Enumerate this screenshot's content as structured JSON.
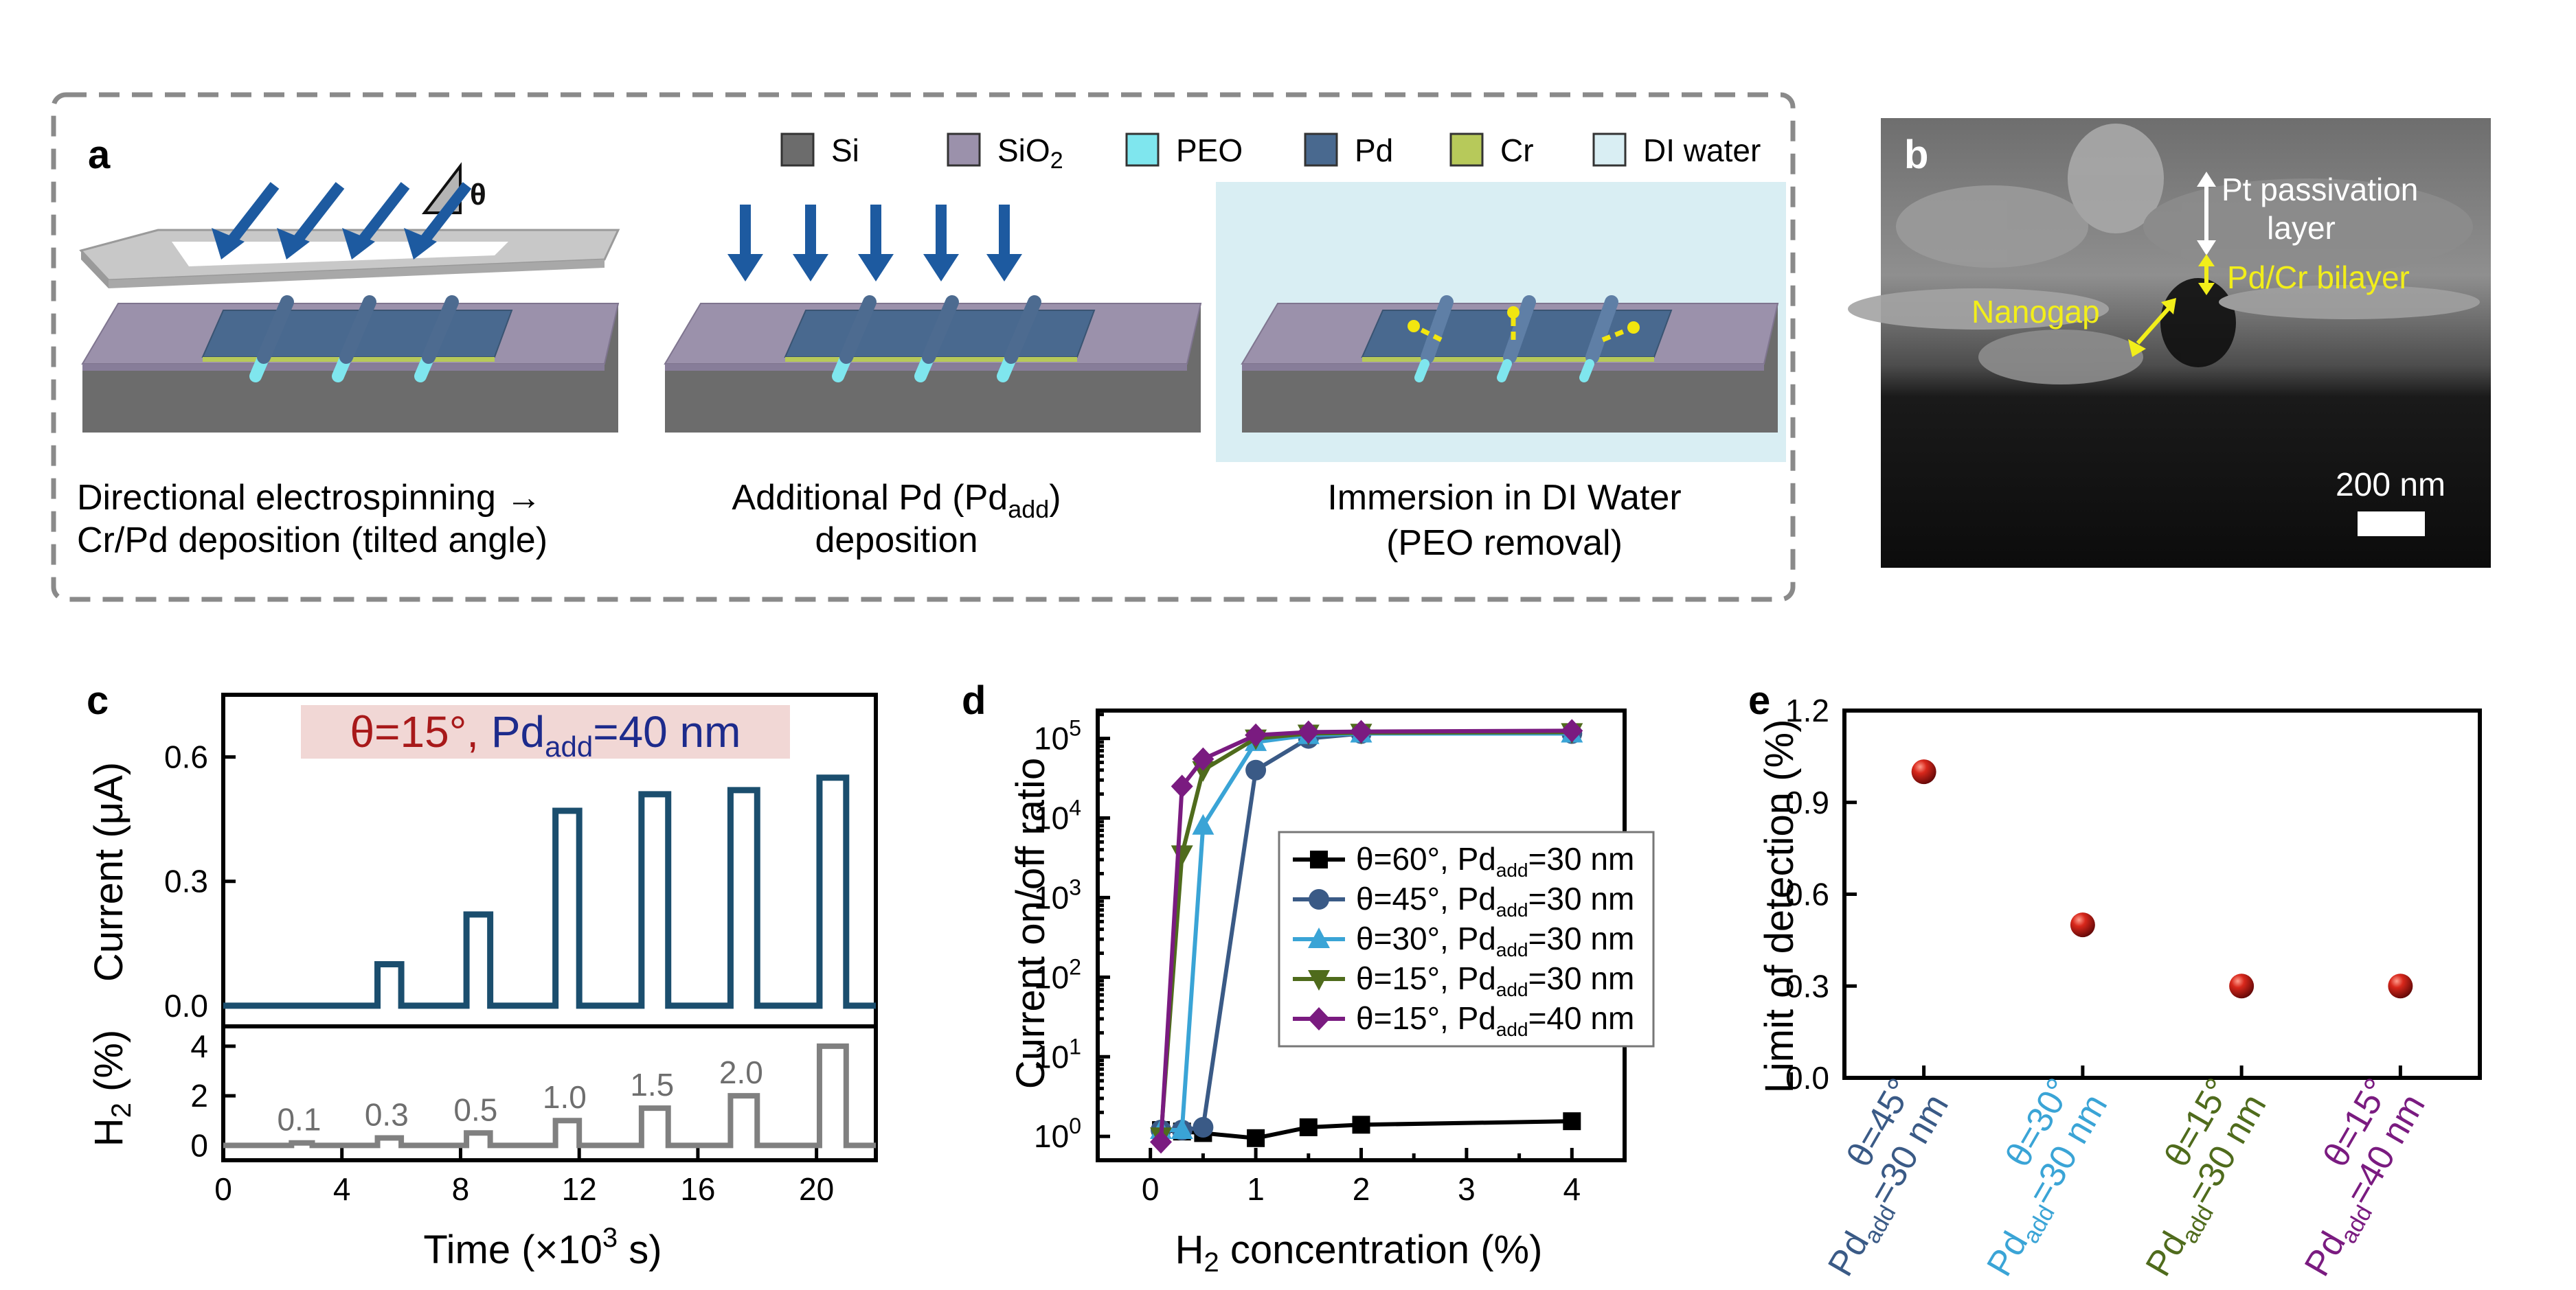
{
  "panel_a": {
    "label": "a",
    "legend": [
      {
        "name": "Si",
        "color": "#6c6c6c"
      },
      {
        "name": "SiO",
        "sub": "2",
        "color": "#9b91ab"
      },
      {
        "name": "PEO",
        "color": "#7fe6ee"
      },
      {
        "name": "Pd",
        "color": "#49698f"
      },
      {
        "name": "Cr",
        "color": "#b7c95a"
      },
      {
        "name": "DI water",
        "color": "#d9eef3"
      }
    ],
    "theta": "θ",
    "step1": {
      "line1": "Directional electrospinning →",
      "line2": "Cr/Pd deposition (tilted angle)"
    },
    "step2": {
      "line1_pre": "Additional Pd (Pd",
      "line1_sub": "add",
      "line1_post": ")",
      "line2": "deposition"
    },
    "step3": {
      "line1": "Immersion in DI Water",
      "line2": "(PEO removal)"
    }
  },
  "panel_b": {
    "label": "b",
    "annot_pt_1": "Pt passivation",
    "annot_pt_2": "layer",
    "annot_pdcr": "Pd/Cr bilayer",
    "annot_gap": "Nanogap",
    "scalebar": "200 nm"
  },
  "panel_c_title": {
    "pre": "θ=15°, ",
    "pd": "Pd",
    "sub": "add",
    "post": "=40 nm"
  },
  "chart_data": [
    {
      "id": "c_top",
      "type": "line",
      "panel": "c",
      "ylabel": "Current (μA)",
      "yticks": [
        "0.0",
        "0.3",
        "0.6"
      ],
      "ylim": [
        -0.05,
        0.75
      ],
      "xlim": [
        0,
        22
      ],
      "pulses": [
        {
          "start": 5.2,
          "end": 6.0,
          "value": 0.1
        },
        {
          "start": 8.2,
          "end": 9.0,
          "value": 0.22
        },
        {
          "start": 11.2,
          "end": 12.0,
          "value": 0.47
        },
        {
          "start": 14.1,
          "end": 15.0,
          "value": 0.51
        },
        {
          "start": 17.1,
          "end": 18.0,
          "value": 0.52
        },
        {
          "start": 20.1,
          "end": 21.0,
          "value": 0.55
        }
      ],
      "color": "#1b4e6e"
    },
    {
      "id": "c_bottom",
      "type": "line",
      "panel": "c",
      "ylabel_pre": "H",
      "ylabel_sub": "2",
      "ylabel_post": " (%)",
      "xlabel_pre": "Time (×10",
      "xlabel_sup": "3",
      "xlabel_post": " s)",
      "xticks": [
        "0",
        "4",
        "8",
        "12",
        "16",
        "20"
      ],
      "yticks": [
        "0",
        "2",
        "4"
      ],
      "ylim": [
        -0.6,
        4.8
      ],
      "xlim": [
        0,
        22
      ],
      "pulses": [
        {
          "start": 2.3,
          "end": 3.0,
          "value": 0.1,
          "label": "0.1"
        },
        {
          "start": 5.2,
          "end": 6.0,
          "value": 0.3,
          "label": "0.3"
        },
        {
          "start": 8.2,
          "end": 9.0,
          "value": 0.5,
          "label": "0.5"
        },
        {
          "start": 11.2,
          "end": 12.0,
          "value": 1.0,
          "label": "1.0"
        },
        {
          "start": 14.1,
          "end": 15.0,
          "value": 1.5,
          "label": "1.5"
        },
        {
          "start": 17.1,
          "end": 18.0,
          "value": 2.0,
          "label": "2.0"
        },
        {
          "start": 20.1,
          "end": 21.0,
          "value": 4.0,
          "label": ""
        }
      ],
      "color": "#808080"
    },
    {
      "id": "d",
      "type": "line",
      "panel": "d",
      "label": "d",
      "xlabel_pre": "H",
      "xlabel_sub": "2",
      "xlabel_post": " concentration (%)",
      "ylabel": "Current on/off ratio",
      "xlim": [
        -0.5,
        4.5
      ],
      "ylim_log": [
        -0.3,
        5.35
      ],
      "xticks": [
        "0",
        "1",
        "2",
        "3",
        "4"
      ],
      "yticks": [
        {
          "base": "10",
          "exp": "0"
        },
        {
          "base": "10",
          "exp": "1"
        },
        {
          "base": "10",
          "exp": "2"
        },
        {
          "base": "10",
          "exp": "3"
        },
        {
          "base": "10",
          "exp": "4"
        },
        {
          "base": "10",
          "exp": "5"
        }
      ],
      "x": [
        0.1,
        0.3,
        0.5,
        1.0,
        1.5,
        2.0,
        4.0
      ],
      "series": [
        {
          "name_pre": "θ=60°, Pd",
          "name_sub": "add",
          "name_post": "=30 nm",
          "color": "#000000",
          "marker": "square",
          "values": [
            1.2,
            1.15,
            1.1,
            0.95,
            1.3,
            1.4,
            1.55
          ]
        },
        {
          "name_pre": "θ=45°, Pd",
          "name_sub": "add",
          "name_post": "=30 nm",
          "color": "#3a5a86",
          "marker": "circle",
          "values": [
            1.2,
            1.2,
            1.3,
            40000,
            100000,
            115000,
            115000
          ]
        },
        {
          "name_pre": "θ=30°, Pd",
          "name_sub": "add",
          "name_post": "=30 nm",
          "color": "#3aa4d6",
          "marker": "triangle-up",
          "values": [
            1.2,
            1.2,
            8000,
            90000,
            110000,
            115000,
            115000
          ]
        },
        {
          "name_pre": "θ=15°, Pd",
          "name_sub": "add",
          "name_post": "=30 nm",
          "color": "#4f6b1c",
          "marker": "triangle-down",
          "values": [
            1.0,
            3500,
            40000,
            100000,
            115000,
            118000,
            120000
          ]
        },
        {
          "name_pre": "θ=15°, Pd",
          "name_sub": "add",
          "name_post": "=40 nm",
          "color": "#7a1b80",
          "marker": "diamond",
          "values": [
            0.85,
            25000,
            55000,
            110000,
            120000,
            122000,
            125000
          ]
        }
      ]
    },
    {
      "id": "e",
      "type": "scatter",
      "panel": "e",
      "label": "e",
      "ylabel": "Limit of detection (%)",
      "ylim": [
        0,
        1.2
      ],
      "yticks": [
        "0.0",
        "0.3",
        "0.6",
        "0.9",
        "1.2"
      ],
      "categories": [
        {
          "line1": "θ=45°",
          "line2_pre": "Pd",
          "line2_sub": "add",
          "line2_post": "=30 nm",
          "color": "#3a5a86"
        },
        {
          "line1": "θ=30°",
          "line2_pre": "Pd",
          "line2_sub": "add",
          "line2_post": "=30 nm",
          "color": "#3aa4d6"
        },
        {
          "line1": "θ=15°",
          "line2_pre": "Pd",
          "line2_sub": "add",
          "line2_post": "=30 nm",
          "color": "#4f6b1c"
        },
        {
          "line1": "θ=15°",
          "line2_pre": "Pd",
          "line2_sub": "add",
          "line2_post": "=40 nm",
          "color": "#7a1b80"
        }
      ],
      "values": [
        1.0,
        0.5,
        0.3,
        0.3
      ],
      "marker_color": "#b01e16"
    }
  ]
}
